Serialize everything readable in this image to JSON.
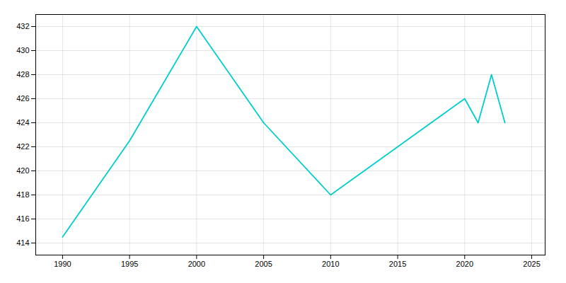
{
  "chart_data": {
    "type": "line",
    "x": [
      1990,
      1995,
      2000,
      2005,
      2010,
      2015,
      2020,
      2021,
      2022,
      2023
    ],
    "values": [
      414.5,
      422.5,
      432,
      424,
      418,
      422,
      426,
      424,
      428,
      424
    ],
    "color": "#00CDCD",
    "xlim": [
      1988,
      2026
    ],
    "ylim": [
      413,
      433
    ],
    "xticks": [
      1990,
      1995,
      2000,
      2005,
      2010,
      2015,
      2020,
      2025
    ],
    "yticks": [
      414,
      416,
      418,
      420,
      422,
      424,
      426,
      428,
      430,
      432
    ],
    "grid": true
  }
}
